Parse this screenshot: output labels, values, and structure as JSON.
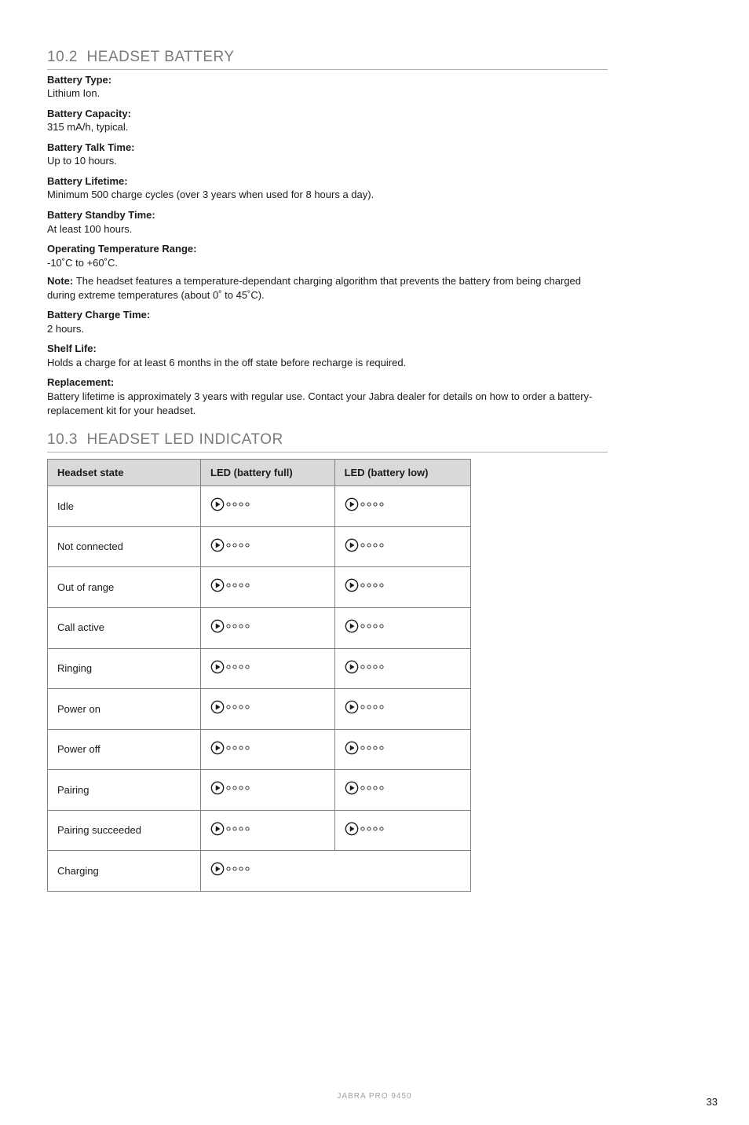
{
  "sections": {
    "battery": {
      "number": "10.2",
      "title": "HEADSET BATTERY",
      "specs": [
        {
          "label": "Battery Type:",
          "value": "Lithium Ion."
        },
        {
          "label": "Battery Capacity:",
          "value": "315 mA/h, typical."
        },
        {
          "label": "Battery Talk Time:",
          "value": "Up to 10 hours."
        },
        {
          "label": "Battery Lifetime:",
          "value": "Minimum 500 charge cycles (over 3 years when used for 8 hours a day)."
        },
        {
          "label": "Battery Standby Time:",
          "value": "At least 100 hours."
        },
        {
          "label": "Operating Temperature Range:",
          "value": "-10˚C to +60˚C.",
          "note_label": "Note:",
          "note": "The headset features a temperature-dependant charging algorithm that prevents the battery from being charged during extreme temperatures (about 0˚ to 45˚C)."
        },
        {
          "label": "Battery Charge Time:",
          "value": "2 hours."
        },
        {
          "label": "Shelf Life:",
          "value": "Holds a charge for at least 6 months in the off state before recharge is required."
        },
        {
          "label": "Replacement:",
          "value": "Battery lifetime is approximately 3 years with regular use. Contact your Jabra dealer for details on how to order a battery-replacement kit for your headset."
        }
      ]
    },
    "led": {
      "number": "10.3",
      "title": "HEADSET LED INDICATOR",
      "headers": [
        "Headset state",
        "LED (battery full)",
        "LED (battery low)"
      ],
      "rows": [
        {
          "state": "Idle"
        },
        {
          "state": "Not connected"
        },
        {
          "state": "Out of range"
        },
        {
          "state": "Call active"
        },
        {
          "state": "Ringing"
        },
        {
          "state": "Power on"
        },
        {
          "state": "Power off"
        },
        {
          "state": "Pairing"
        },
        {
          "state": "Pairing succeeded"
        },
        {
          "state": "Charging",
          "merged": true
        }
      ]
    }
  },
  "footer": "JABRA PRO 9450",
  "page_number": "33",
  "colors": {
    "section_heading": "#7a7a7a",
    "rule": "#b0b0b0",
    "table_border": "#808080",
    "table_header_bg": "#d9d9d9",
    "footer_text": "#a0a0a0",
    "icon_stroke": "#1a1a1a"
  },
  "icon": {
    "play_circle_d": 18,
    "dot_d": 6,
    "dot_gap": 2,
    "stroke_width": 1.5
  }
}
